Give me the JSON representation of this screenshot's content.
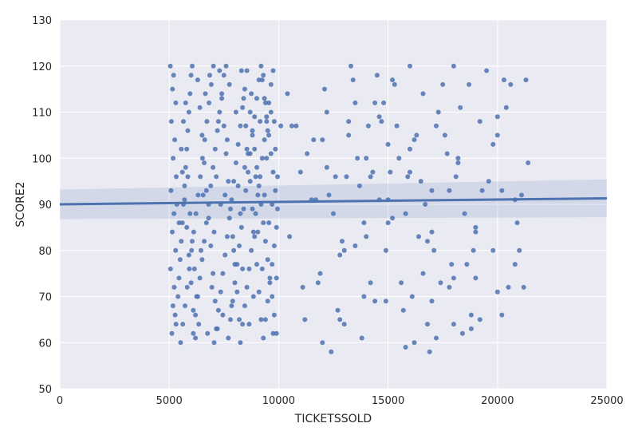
{
  "chart_data": {
    "type": "scatter",
    "title": "",
    "xlabel": "TICKETSSOLD",
    "ylabel": "SCORE2",
    "xlim": [
      0,
      25000
    ],
    "ylim": [
      50,
      130
    ],
    "xticks": [
      0,
      5000,
      10000,
      15000,
      20000,
      25000
    ],
    "yticks": [
      50,
      60,
      70,
      80,
      90,
      100,
      110,
      120,
      130
    ],
    "grid": true,
    "background": "#eaeaf2",
    "point_color": "#4c72b0",
    "regression": {
      "x": [
        0,
        25000
      ],
      "y": [
        90.0,
        91.3
      ],
      "ci_upper": [
        93.2,
        95.4
      ],
      "ci_lower": [
        86.8,
        87.2
      ]
    },
    "points": [
      [
        5050,
        120
      ],
      [
        5200,
        118
      ],
      [
        5150,
        115
      ],
      [
        5300,
        112
      ],
      [
        5100,
        108
      ],
      [
        5250,
        104
      ],
      [
        5180,
        100
      ],
      [
        5320,
        96
      ],
      [
        5080,
        93
      ],
      [
        5220,
        88
      ],
      [
        5140,
        84
      ],
      [
        5290,
        80
      ],
      [
        5060,
        76
      ],
      [
        5230,
        72
      ],
      [
        5170,
        68
      ],
      [
        5310,
        64
      ],
      [
        5120,
        62
      ],
      [
        5270,
        66
      ],
      [
        5400,
        70
      ],
      [
        5450,
        74
      ],
      [
        5500,
        78
      ],
      [
        5550,
        82
      ],
      [
        5600,
        86
      ],
      [
        5650,
        90
      ],
      [
        5700,
        94
      ],
      [
        5750,
        98
      ],
      [
        5800,
        102
      ],
      [
        5850,
        106
      ],
      [
        5900,
        110
      ],
      [
        5950,
        114
      ],
      [
        6000,
        118
      ],
      [
        6050,
        120
      ],
      [
        5520,
        60
      ],
      [
        5620,
        64
      ],
      [
        5720,
        68
      ],
      [
        5820,
        72
      ],
      [
        5920,
        76
      ],
      [
        6020,
        80
      ],
      [
        6120,
        84
      ],
      [
        6220,
        88
      ],
      [
        6320,
        92
      ],
      [
        6420,
        96
      ],
      [
        6520,
        100
      ],
      [
        6620,
        104
      ],
      [
        6720,
        108
      ],
      [
        6820,
        112
      ],
      [
        6920,
        116
      ],
      [
        7020,
        120
      ],
      [
        6100,
        62
      ],
      [
        6200,
        66
      ],
      [
        6300,
        70
      ],
      [
        6400,
        74
      ],
      [
        6500,
        78
      ],
      [
        6600,
        82
      ],
      [
        6700,
        86
      ],
      [
        6800,
        90
      ],
      [
        6900,
        94
      ],
      [
        7000,
        98
      ],
      [
        7100,
        102
      ],
      [
        7200,
        106
      ],
      [
        7300,
        110
      ],
      [
        7400,
        114
      ],
      [
        7500,
        118
      ],
      [
        7600,
        120
      ],
      [
        7050,
        60
      ],
      [
        7150,
        63
      ],
      [
        7250,
        67
      ],
      [
        7350,
        71
      ],
      [
        7450,
        75
      ],
      [
        7550,
        79
      ],
      [
        7650,
        83
      ],
      [
        7750,
        87
      ],
      [
        7850,
        91
      ],
      [
        7950,
        95
      ],
      [
        8050,
        99
      ],
      [
        8150,
        103
      ],
      [
        8250,
        107
      ],
      [
        8350,
        111
      ],
      [
        8450,
        115
      ],
      [
        8550,
        119
      ],
      [
        7700,
        61
      ],
      [
        7800,
        65
      ],
      [
        7900,
        69
      ],
      [
        8000,
        73
      ],
      [
        8100,
        77
      ],
      [
        8200,
        81
      ],
      [
        8300,
        85
      ],
      [
        8400,
        89
      ],
      [
        8500,
        93
      ],
      [
        8600,
        97
      ],
      [
        8700,
        101
      ],
      [
        8800,
        105
      ],
      [
        8900,
        109
      ],
      [
        9000,
        113
      ],
      [
        9100,
        117
      ],
      [
        9200,
        120
      ],
      [
        8250,
        60
      ],
      [
        8350,
        64
      ],
      [
        8450,
        68
      ],
      [
        8550,
        72
      ],
      [
        8650,
        76
      ],
      [
        8750,
        80
      ],
      [
        8850,
        84
      ],
      [
        8950,
        88
      ],
      [
        9050,
        92
      ],
      [
        9150,
        96
      ],
      [
        9250,
        100
      ],
      [
        9350,
        104
      ],
      [
        9450,
        108
      ],
      [
        9550,
        112
      ],
      [
        9650,
        116
      ],
      [
        9750,
        119
      ],
      [
        9300,
        61
      ],
      [
        9400,
        65
      ],
      [
        9500,
        69
      ],
      [
        9600,
        73
      ],
      [
        9700,
        77
      ],
      [
        9800,
        81
      ],
      [
        9900,
        85
      ],
      [
        9950,
        89
      ],
      [
        9850,
        93
      ],
      [
        9750,
        97
      ],
      [
        9650,
        101
      ],
      [
        9550,
        105
      ],
      [
        9450,
        109
      ],
      [
        9350,
        113
      ],
      [
        9250,
        117
      ],
      [
        9900,
        62
      ],
      [
        9800,
        66
      ],
      [
        9700,
        70
      ],
      [
        9600,
        74
      ],
      [
        9500,
        78
      ],
      [
        9400,
        82
      ],
      [
        9300,
        86
      ],
      [
        9200,
        90
      ],
      [
        9100,
        94
      ],
      [
        9000,
        98
      ],
      [
        8900,
        102
      ],
      [
        8800,
        106
      ],
      [
        8700,
        110
      ],
      [
        5600,
        97
      ],
      [
        5700,
        91
      ],
      [
        5800,
        85
      ],
      [
        5900,
        79
      ],
      [
        6000,
        73
      ],
      [
        6100,
        67
      ],
      [
        6200,
        61
      ],
      [
        6300,
        117
      ],
      [
        6400,
        111
      ],
      [
        6500,
        105
      ],
      [
        6600,
        99
      ],
      [
        6700,
        93
      ],
      [
        6800,
        87
      ],
      [
        6900,
        81
      ],
      [
        7000,
        75
      ],
      [
        7100,
        69
      ],
      [
        7200,
        63
      ],
      [
        7300,
        119
      ],
      [
        7400,
        113
      ],
      [
        7500,
        107
      ],
      [
        7600,
        101
      ],
      [
        7700,
        95
      ],
      [
        7800,
        89
      ],
      [
        7900,
        83
      ],
      [
        8000,
        77
      ],
      [
        8100,
        71
      ],
      [
        8200,
        65
      ],
      [
        8300,
        119
      ],
      [
        8400,
        113
      ],
      [
        8500,
        107
      ],
      [
        8600,
        101
      ],
      [
        8700,
        95
      ],
      [
        8800,
        89
      ],
      [
        8900,
        83
      ],
      [
        9000,
        77
      ],
      [
        9100,
        71
      ],
      [
        9200,
        65
      ],
      [
        9300,
        118
      ],
      [
        9400,
        112
      ],
      [
        9500,
        106
      ],
      [
        5350,
        90
      ],
      [
        5450,
        86
      ],
      [
        5550,
        102
      ],
      [
        5650,
        108
      ],
      [
        5750,
        112
      ],
      [
        5850,
        96
      ],
      [
        5950,
        88
      ],
      [
        6050,
        82
      ],
      [
        6150,
        76
      ],
      [
        6250,
        70
      ],
      [
        6350,
        64
      ],
      [
        6450,
        80
      ],
      [
        6550,
        92
      ],
      [
        6650,
        114
      ],
      [
        6750,
        62
      ],
      [
        6850,
        118
      ],
      [
        6950,
        72
      ],
      [
        7050,
        84
      ],
      [
        7150,
        96
      ],
      [
        7250,
        108
      ],
      [
        7350,
        90
      ],
      [
        7450,
        66
      ],
      [
        7550,
        92
      ],
      [
        7650,
        104
      ],
      [
        7750,
        116
      ],
      [
        7850,
        68
      ],
      [
        7950,
        80
      ],
      [
        8050,
        110
      ],
      [
        8150,
        94
      ],
      [
        8250,
        88
      ],
      [
        8350,
        76
      ],
      [
        8450,
        98
      ],
      [
        8550,
        102
      ],
      [
        8650,
        64
      ],
      [
        8750,
        114
      ],
      [
        8850,
        70
      ],
      [
        8950,
        96
      ],
      [
        9050,
        84
      ],
      [
        9150,
        108
      ],
      [
        9250,
        76
      ],
      [
        9350,
        92
      ],
      [
        9450,
        100
      ],
      [
        9550,
        86
      ],
      [
        9650,
        110
      ],
      [
        9750,
        62
      ],
      [
        9850,
        102
      ],
      [
        9950,
        96
      ],
      [
        9900,
        74
      ],
      [
        9800,
        108
      ],
      [
        9700,
        90
      ],
      [
        10100,
        107
      ],
      [
        10400,
        114
      ],
      [
        10600,
        107
      ],
      [
        10800,
        107
      ],
      [
        11000,
        97
      ],
      [
        11100,
        72
      ],
      [
        11300,
        101
      ],
      [
        11500,
        91
      ],
      [
        11600,
        104
      ],
      [
        11800,
        73
      ],
      [
        12000,
        104
      ],
      [
        12100,
        115
      ],
      [
        12200,
        98
      ],
      [
        12300,
        92
      ],
      [
        12500,
        88
      ],
      [
        12600,
        96
      ],
      [
        12700,
        67
      ],
      [
        12800,
        65
      ],
      [
        12900,
        82
      ],
      [
        13000,
        80
      ],
      [
        13100,
        96
      ],
      [
        13200,
        105
      ],
      [
        13300,
        120
      ],
      [
        13400,
        117
      ],
      [
        13500,
        112
      ],
      [
        13600,
        100
      ],
      [
        13700,
        94
      ],
      [
        13800,
        61
      ],
      [
        13900,
        70
      ],
      [
        14000,
        83
      ],
      [
        14100,
        107
      ],
      [
        14200,
        73
      ],
      [
        14300,
        97
      ],
      [
        14400,
        112
      ],
      [
        14500,
        118
      ],
      [
        14600,
        109
      ],
      [
        14700,
        108
      ],
      [
        14800,
        112
      ],
      [
        14900,
        69
      ],
      [
        15000,
        91
      ],
      [
        15100,
        97
      ],
      [
        15200,
        87
      ],
      [
        15300,
        116
      ],
      [
        15400,
        107
      ],
      [
        15500,
        100
      ],
      [
        15600,
        73
      ],
      [
        15700,
        67
      ],
      [
        15800,
        59
      ],
      [
        15900,
        96
      ],
      [
        16000,
        120
      ],
      [
        16100,
        70
      ],
      [
        16200,
        60
      ],
      [
        16300,
        105
      ],
      [
        16400,
        83
      ],
      [
        16500,
        95
      ],
      [
        16600,
        114
      ],
      [
        16700,
        90
      ],
      [
        16800,
        64
      ],
      [
        16900,
        58
      ],
      [
        17000,
        69
      ],
      [
        17100,
        80
      ],
      [
        17200,
        107
      ],
      [
        17300,
        110
      ],
      [
        17400,
        73
      ],
      [
        17500,
        116
      ],
      [
        17600,
        105
      ],
      [
        17700,
        101
      ],
      [
        17800,
        93
      ],
      [
        17900,
        77
      ],
      [
        18000,
        120
      ],
      [
        18100,
        96
      ],
      [
        18200,
        100
      ],
      [
        18300,
        111
      ],
      [
        18400,
        62
      ],
      [
        18500,
        88
      ],
      [
        18600,
        77
      ],
      [
        18700,
        116
      ],
      [
        18800,
        63
      ],
      [
        18900,
        80
      ],
      [
        19000,
        84
      ],
      [
        19200,
        108
      ],
      [
        19300,
        93
      ],
      [
        19500,
        119
      ],
      [
        19600,
        95
      ],
      [
        19800,
        103
      ],
      [
        20000,
        71
      ],
      [
        20200,
        93
      ],
      [
        20300,
        117
      ],
      [
        20400,
        111
      ],
      [
        20500,
        72
      ],
      [
        20600,
        116
      ],
      [
        20800,
        91
      ],
      [
        20900,
        86
      ],
      [
        21100,
        92
      ],
      [
        21300,
        117
      ],
      [
        21400,
        99
      ],
      [
        11200,
        65
      ],
      [
        11700,
        91
      ],
      [
        12400,
        58
      ],
      [
        13500,
        81
      ],
      [
        14400,
        69
      ],
      [
        15000,
        86
      ],
      [
        16000,
        97
      ],
      [
        17000,
        93
      ],
      [
        18000,
        74
      ],
      [
        19000,
        74
      ],
      [
        20000,
        109
      ],
      [
        21000,
        80
      ],
      [
        10500,
        83
      ],
      [
        11900,
        75
      ],
      [
        12800,
        79
      ],
      [
        13900,
        86
      ],
      [
        14900,
        80
      ],
      [
        15800,
        88
      ],
      [
        16800,
        82
      ],
      [
        17800,
        72
      ],
      [
        18800,
        66
      ],
      [
        19800,
        80
      ],
      [
        20800,
        77
      ],
      [
        12000,
        60
      ],
      [
        13000,
        64
      ],
      [
        14000,
        100
      ],
      [
        15000,
        103
      ],
      [
        16000,
        102
      ],
      [
        17000,
        84
      ],
      [
        18000,
        64
      ],
      [
        19000,
        85
      ],
      [
        20000,
        105
      ],
      [
        21200,
        72
      ],
      [
        12200,
        110
      ],
      [
        14200,
        96
      ],
      [
        16200,
        104
      ],
      [
        18200,
        99
      ],
      [
        20200,
        66
      ],
      [
        13200,
        108
      ],
      [
        15200,
        117
      ],
      [
        17200,
        61
      ],
      [
        19200,
        65
      ],
      [
        14600,
        91
      ],
      [
        16600,
        75
      ]
    ]
  }
}
